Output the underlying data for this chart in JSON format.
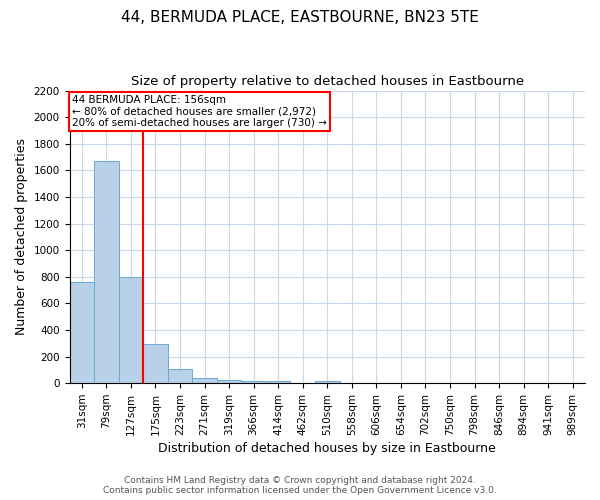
{
  "title": "44, BERMUDA PLACE, EASTBOURNE, BN23 5TE",
  "subtitle": "Size of property relative to detached houses in Eastbourne",
  "xlabel": "Distribution of detached houses by size in Eastbourne",
  "ylabel": "Number of detached properties",
  "footer_line1": "Contains HM Land Registry data © Crown copyright and database right 2024.",
  "footer_line2": "Contains public sector information licensed under the Open Government Licence v3.0.",
  "annotation_line1": "44 BERMUDA PLACE: 156sqm",
  "annotation_line2": "← 80% of detached houses are smaller (2,972)",
  "annotation_line3": "20% of semi-detached houses are larger (730) →",
  "categories": [
    "31sqm",
    "79sqm",
    "127sqm",
    "175sqm",
    "223sqm",
    "271sqm",
    "319sqm",
    "366sqm",
    "414sqm",
    "462sqm",
    "510sqm",
    "558sqm",
    "606sqm",
    "654sqm",
    "702sqm",
    "750sqm",
    "798sqm",
    "846sqm",
    "894sqm",
    "941sqm",
    "989sqm"
  ],
  "values": [
    760,
    1670,
    800,
    295,
    110,
    37,
    25,
    18,
    15,
    0,
    20,
    0,
    0,
    0,
    0,
    0,
    0,
    0,
    0,
    0,
    0
  ],
  "bar_color": "#b8d0e8",
  "bar_edge_color": "#6aaad4",
  "red_line_x": 2.5,
  "ylim": [
    0,
    2200
  ],
  "yticks": [
    0,
    200,
    400,
    600,
    800,
    1000,
    1200,
    1400,
    1600,
    1800,
    2000,
    2200
  ],
  "background_color": "#ffffff",
  "grid_color": "#c8d8ea",
  "title_fontsize": 11,
  "subtitle_fontsize": 9.5,
  "axis_label_fontsize": 9,
  "tick_fontsize": 7.5,
  "footer_fontsize": 6.5,
  "annotation_fontsize": 7.5
}
